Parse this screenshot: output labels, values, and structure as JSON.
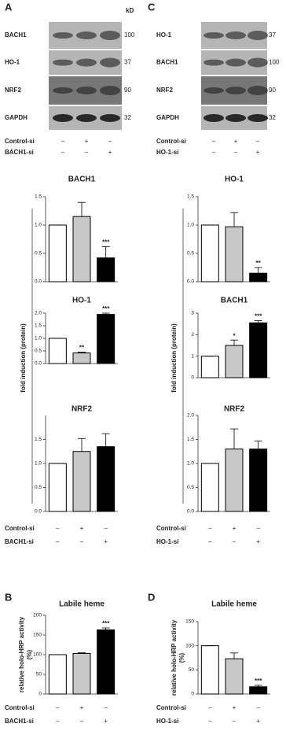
{
  "panel_labels": [
    "A",
    "C",
    "B",
    "D"
  ],
  "blots": [
    {
      "kd_label": "kD",
      "rows": [
        {
          "name": "BACH1",
          "kd": "100"
        },
        {
          "name": "HO-1",
          "kd": "37"
        },
        {
          "name": "NRF2",
          "kd": "90"
        },
        {
          "name": "GAPDH",
          "kd": "32"
        }
      ],
      "conditions": [
        {
          "name": "Control-si",
          "signs": [
            "–",
            "+",
            "–"
          ]
        },
        {
          "name": "BACH1-si",
          "signs": [
            "–",
            "–",
            "+"
          ]
        }
      ]
    },
    {
      "rows": [
        {
          "name": "HO-1",
          "kd": "37"
        },
        {
          "name": "BACH1",
          "kd": "100"
        },
        {
          "name": "NRF2",
          "kd": "90"
        },
        {
          "name": "GAPDH",
          "kd": "32"
        }
      ],
      "conditions": [
        {
          "name": "Control-si",
          "signs": [
            "–",
            "+",
            "–"
          ]
        },
        {
          "name": "HO-1-si",
          "signs": [
            "–",
            "–",
            "+"
          ]
        }
      ]
    }
  ],
  "group_y_labels": [
    "fold induction (protein)",
    "fold induction (protein)"
  ],
  "chart_data": [
    {
      "type": "bar",
      "title": "BACH1",
      "values": [
        1.0,
        1.15,
        0.42
      ],
      "errors": [
        0,
        0.25,
        0.2
      ],
      "annotations": [
        null,
        null,
        "***"
      ],
      "colors": [
        "#ffffff",
        "#c8c8c8",
        "#000000"
      ],
      "ylim": [
        0,
        1.5
      ],
      "yticks": [
        {
          "value": 0,
          "label": "0.0"
        },
        0.5,
        {
          "value": 1,
          "label": "1.0"
        },
        1.5
      ]
    },
    {
      "type": "bar",
      "title": "HO-1",
      "values": [
        1.0,
        0.42,
        1.95
      ],
      "errors": [
        0,
        0.03,
        0.05
      ],
      "annotations": [
        null,
        "**",
        "***"
      ],
      "colors": [
        "#ffffff",
        "#c8c8c8",
        "#000000"
      ],
      "ylim": [
        0,
        2
      ],
      "yticks": [
        {
          "value": 0,
          "label": "0.0"
        },
        0.5,
        {
          "value": 1,
          "label": "1.0"
        },
        1.5,
        {
          "value": 2,
          "label": "2.0"
        }
      ]
    },
    {
      "type": "bar",
      "title": "NRF2",
      "values": [
        1.0,
        1.25,
        1.35
      ],
      "errors": [
        0,
        0.27,
        0.27
      ],
      "annotations": [
        null,
        null,
        null
      ],
      "colors": [
        "#ffffff",
        "#c8c8c8",
        "#000000"
      ],
      "ylim": [
        0,
        2
      ],
      "yticks": [
        {
          "value": 0,
          "label": "0.0"
        },
        0.5,
        {
          "value": 1,
          "label": "1.0"
        },
        1.5
      ],
      "conditions": [
        {
          "name": "Control-si",
          "signs": [
            "–",
            "+",
            "–"
          ]
        },
        {
          "name": "BACH1-si",
          "signs": [
            "–",
            "–",
            "+"
          ]
        }
      ]
    },
    {
      "type": "bar",
      "title": "HO-1",
      "values": [
        1.0,
        0.97,
        0.15
      ],
      "errors": [
        0,
        0.25,
        0.1
      ],
      "annotations": [
        null,
        null,
        "**"
      ],
      "colors": [
        "#ffffff",
        "#c8c8c8",
        "#000000"
      ],
      "ylim": [
        0,
        1.5
      ],
      "yticks": [
        {
          "value": 0,
          "label": "0.0"
        },
        0.5,
        {
          "value": 1,
          "label": "1.0"
        },
        1.5
      ]
    },
    {
      "type": "bar",
      "title": "BACH1",
      "values": [
        1.0,
        1.5,
        2.55
      ],
      "errors": [
        0,
        0.25,
        0.1
      ],
      "annotations": [
        null,
        "*",
        "***"
      ],
      "colors": [
        "#ffffff",
        "#c8c8c8",
        "#000000"
      ],
      "ylim": [
        0,
        3
      ],
      "yticks": [
        0,
        1,
        2,
        3
      ]
    },
    {
      "type": "bar",
      "title": "NRF2",
      "values": [
        1.0,
        1.3,
        1.3
      ],
      "errors": [
        0,
        0.42,
        0.17
      ],
      "annotations": [
        null,
        null,
        null
      ],
      "colors": [
        "#ffffff",
        "#c8c8c8",
        "#000000"
      ],
      "ylim": [
        0,
        2
      ],
      "yticks": [
        {
          "value": 0,
          "label": "0.0"
        },
        0.5,
        {
          "value": 1,
          "label": "1.0"
        },
        1.5,
        {
          "value": 2,
          "label": "2.0"
        }
      ],
      "conditions": [
        {
          "name": "Control-si",
          "signs": [
            "–",
            "+",
            "–"
          ]
        },
        {
          "name": "HO-1-si",
          "signs": [
            "–",
            "–",
            "+"
          ]
        }
      ]
    },
    {
      "type": "bar",
      "title": "Labile heme",
      "y_label_lines": [
        "relative holo-HRP activity",
        "(%)"
      ],
      "values": [
        100,
        103,
        163
      ],
      "errors": [
        0,
        2,
        5
      ],
      "annotations": [
        null,
        null,
        "***"
      ],
      "colors": [
        "#ffffff",
        "#c8c8c8",
        "#000000"
      ],
      "ylim": [
        0,
        200
      ],
      "yticks": [
        0,
        50,
        100,
        150,
        200
      ],
      "conditions": [
        {
          "name": "Control-si",
          "signs": [
            "–",
            "+",
            "–"
          ]
        },
        {
          "name": "BACH1-si",
          "signs": [
            "–",
            "–",
            "+"
          ]
        }
      ]
    },
    {
      "type": "bar",
      "title": "Labile heme",
      "y_label_lines": [
        "relative holo-HRP activity",
        "(%)"
      ],
      "values": [
        100,
        73,
        15
      ],
      "errors": [
        0,
        12,
        3
      ],
      "annotations": [
        null,
        null,
        "***"
      ],
      "colors": [
        "#ffffff",
        "#c8c8c8",
        "#000000"
      ],
      "ylim": [
        0,
        150
      ],
      "yticks": [
        0,
        50,
        100,
        150
      ],
      "conditions": [
        {
          "name": "Control-si",
          "signs": [
            "–",
            "+",
            "–"
          ]
        },
        {
          "name": "HO-1-si",
          "signs": [
            "–",
            "–",
            "+"
          ]
        }
      ]
    }
  ]
}
